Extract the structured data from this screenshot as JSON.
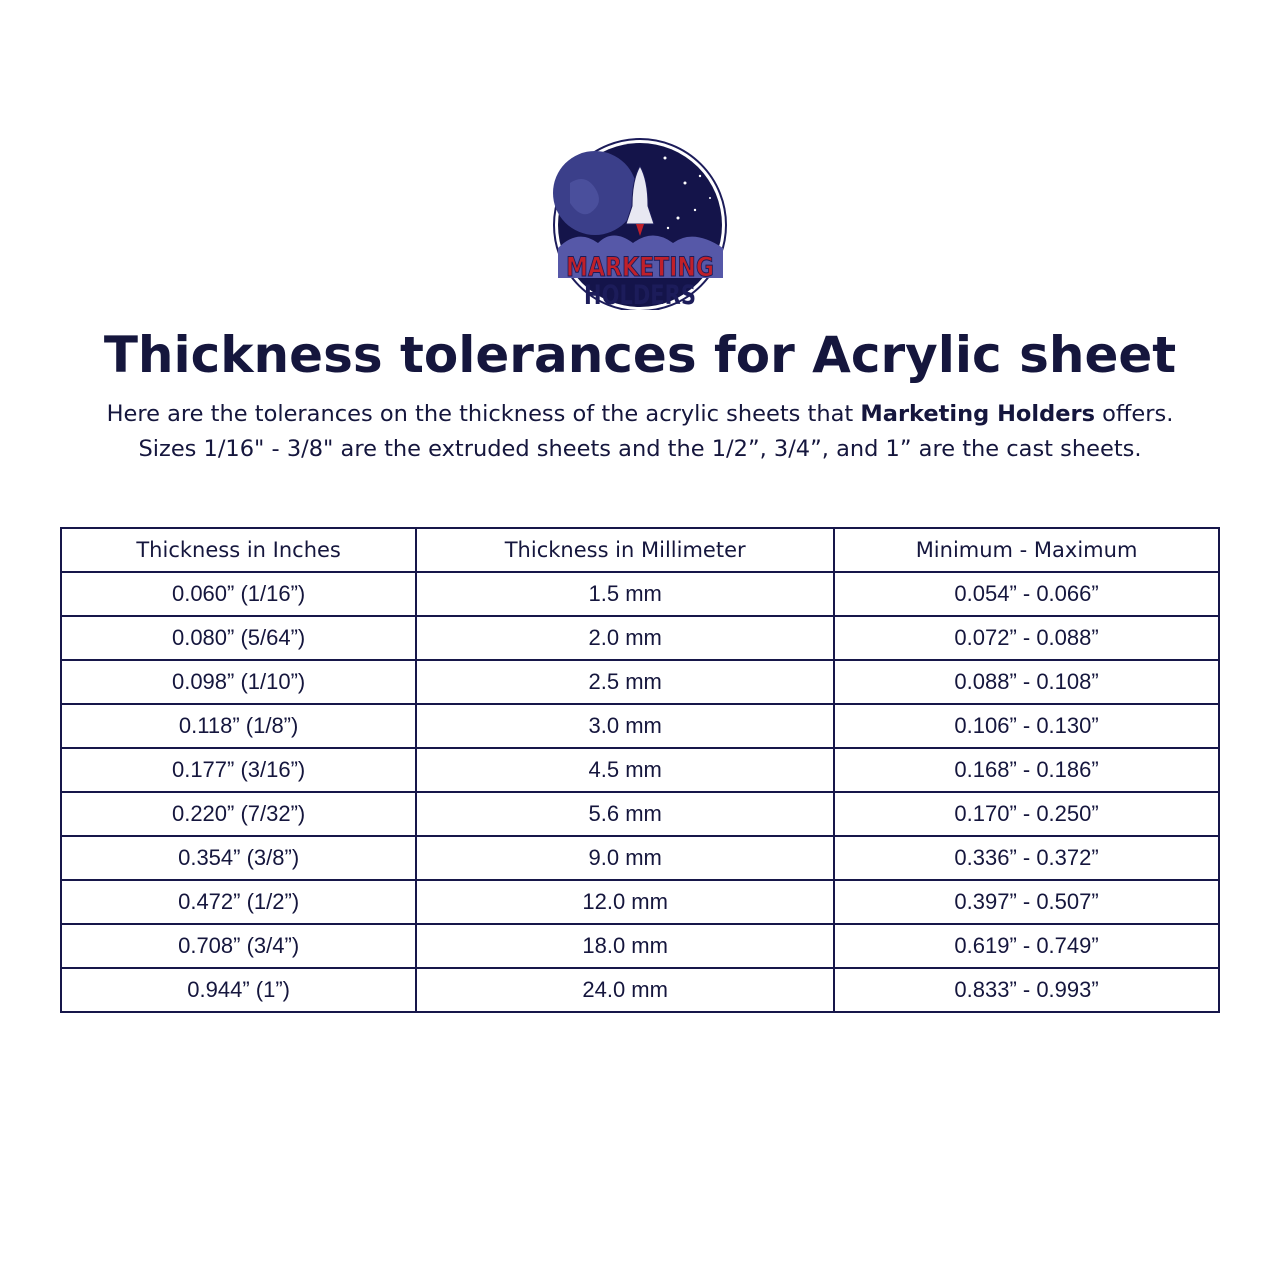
{
  "logo": {
    "line1": "MARKETING",
    "line2": "HOLDERS",
    "colors": {
      "navy": "#1c1c5a",
      "red": "#c0202a",
      "space": "#14144a"
    }
  },
  "title": "Thickness tolerances for Acrylic sheet",
  "subtitle": {
    "line1_pre": "Here are the tolerances on the thickness of the acrylic sheets that ",
    "line1_bold": "Marketing Holders",
    "line1_post": " offers.",
    "line2": "Sizes 1/16\" - 3/8\" are the extruded sheets and the 1/2”, 3/4”, and 1” are the cast sheets."
  },
  "table": {
    "headers": [
      "Thickness in Inches",
      "Thickness in Millimeter",
      "Minimum - Maximum"
    ],
    "rows": [
      [
        "0.060” (1/16”)",
        "1.5 mm",
        "0.054” - 0.066”"
      ],
      [
        "0.080” (5/64”)",
        "2.0 mm",
        "0.072” - 0.088”"
      ],
      [
        "0.098” (1/10”)",
        "2.5 mm",
        "0.088” - 0.108”"
      ],
      [
        "0.118” (1/8”)",
        "3.0 mm",
        "0.106” - 0.130”"
      ],
      [
        "0.177” (3/16”)",
        "4.5 mm",
        "0.168” - 0.186”"
      ],
      [
        "0.220” (7/32”)",
        "5.6 mm",
        "0.170” - 0.250”"
      ],
      [
        "0.354” (3/8”)",
        "9.0 mm",
        "0.336” - 0.372”"
      ],
      [
        "0.472” (1/2”)",
        "12.0 mm",
        "0.397” - 0.507”"
      ],
      [
        "0.708” (3/4”)",
        "18.0 mm",
        "0.619” - 0.749”"
      ],
      [
        "0.944” (1”)",
        "24.0 mm",
        "0.833” - 0.993”"
      ]
    ]
  }
}
